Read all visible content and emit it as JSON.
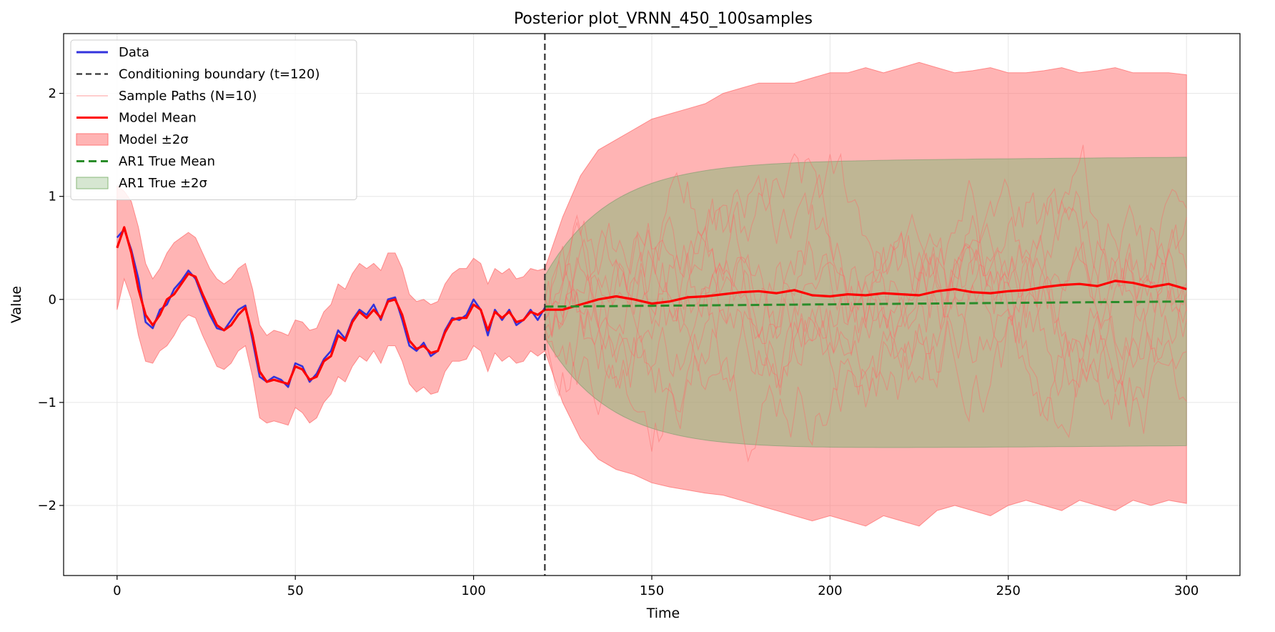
{
  "chart_data": {
    "type": "line",
    "title": "Posterior plot_VRNN_450_100samples",
    "xlabel": "Time",
    "ylabel": "Value",
    "xlim": [
      -15,
      315
    ],
    "ylim": [
      -2.68,
      2.58
    ],
    "x_ticks": [
      0,
      50,
      100,
      150,
      200,
      250,
      300
    ],
    "x_tick_labels": [
      "0",
      "50",
      "100",
      "150",
      "200",
      "250",
      "300"
    ],
    "y_ticks": [
      -2,
      -1,
      0,
      1,
      2
    ],
    "y_tick_labels": [
      "−2",
      "−1",
      "0",
      "1",
      "2"
    ],
    "grid": true,
    "legend_position": "top-left",
    "conditioning_boundary": 120,
    "colors": {
      "data": "#3333dd",
      "boundary": "#333333",
      "sample": "#ff6666",
      "model_mean": "#ff0000",
      "model_band": "#ff7777",
      "ar1_mean": "#2a8c2a",
      "ar1_band": "#8ab87a"
    },
    "legend": [
      {
        "key": "data",
        "label": "Data",
        "style": "line"
      },
      {
        "key": "boundary",
        "label": "Conditioning boundary (t=120)",
        "style": "dash"
      },
      {
        "key": "sample",
        "label": "Sample Paths (N=10)",
        "style": "thin"
      },
      {
        "key": "model_mean",
        "label": "Model Mean",
        "style": "line"
      },
      {
        "key": "model_band",
        "label": "Model ±2σ",
        "style": "patch"
      },
      {
        "key": "ar1_mean",
        "label": "AR1 True Mean",
        "style": "dash"
      },
      {
        "key": "ar1_band",
        "label": "AR1 True ±2σ",
        "style": "patch"
      }
    ],
    "data": {
      "x": [
        0,
        2,
        4,
        6,
        8,
        10,
        12,
        14,
        16,
        18,
        20,
        22,
        24,
        26,
        28,
        30,
        32,
        34,
        36,
        38,
        40,
        42,
        44,
        46,
        48,
        50,
        52,
        54,
        56,
        58,
        60,
        62,
        64,
        66,
        68,
        70,
        72,
        74,
        76,
        78,
        80,
        82,
        84,
        86,
        88,
        90,
        92,
        94,
        96,
        98,
        100,
        102,
        104,
        106,
        108,
        110,
        112,
        114,
        116,
        118,
        120
      ],
      "y": [
        0.6,
        0.68,
        0.48,
        0.2,
        -0.22,
        -0.28,
        -0.1,
        -0.05,
        0.1,
        0.18,
        0.28,
        0.2,
        0.02,
        -0.15,
        -0.28,
        -0.3,
        -0.2,
        -0.1,
        -0.06,
        -0.4,
        -0.75,
        -0.8,
        -0.75,
        -0.78,
        -0.85,
        -0.62,
        -0.65,
        -0.8,
        -0.72,
        -0.58,
        -0.5,
        -0.3,
        -0.38,
        -0.2,
        -0.1,
        -0.15,
        -0.05,
        -0.2,
        0.0,
        0.02,
        -0.2,
        -0.45,
        -0.5,
        -0.42,
        -0.55,
        -0.5,
        -0.3,
        -0.18,
        -0.2,
        -0.15,
        0.0,
        -0.1,
        -0.35,
        -0.1,
        -0.2,
        -0.1,
        -0.25,
        -0.2,
        -0.1,
        -0.2,
        -0.08
      ]
    },
    "model_mean": {
      "x": [
        0,
        2,
        4,
        6,
        8,
        10,
        12,
        14,
        16,
        18,
        20,
        22,
        24,
        26,
        28,
        30,
        32,
        34,
        36,
        38,
        40,
        42,
        44,
        46,
        48,
        50,
        52,
        54,
        56,
        58,
        60,
        62,
        64,
        66,
        68,
        70,
        72,
        74,
        76,
        78,
        80,
        82,
        84,
        86,
        88,
        90,
        92,
        94,
        96,
        98,
        100,
        102,
        104,
        106,
        108,
        110,
        112,
        114,
        116,
        118,
        120,
        125,
        130,
        135,
        140,
        145,
        150,
        155,
        160,
        165,
        170,
        175,
        180,
        185,
        190,
        195,
        200,
        205,
        210,
        215,
        220,
        225,
        230,
        235,
        240,
        245,
        250,
        255,
        260,
        265,
        270,
        275,
        280,
        285,
        290,
        295,
        300
      ],
      "y": [
        0.5,
        0.7,
        0.45,
        0.1,
        -0.15,
        -0.25,
        -0.15,
        0.0,
        0.05,
        0.15,
        0.25,
        0.22,
        0.05,
        -0.1,
        -0.25,
        -0.3,
        -0.25,
        -0.15,
        -0.08,
        -0.35,
        -0.7,
        -0.8,
        -0.78,
        -0.8,
        -0.82,
        -0.65,
        -0.68,
        -0.78,
        -0.75,
        -0.6,
        -0.55,
        -0.35,
        -0.4,
        -0.22,
        -0.12,
        -0.18,
        -0.1,
        -0.18,
        -0.02,
        0.0,
        -0.15,
        -0.4,
        -0.48,
        -0.45,
        -0.52,
        -0.5,
        -0.32,
        -0.2,
        -0.18,
        -0.18,
        -0.05,
        -0.1,
        -0.3,
        -0.12,
        -0.18,
        -0.12,
        -0.22,
        -0.2,
        -0.12,
        -0.15,
        -0.1,
        -0.1,
        -0.05,
        0.0,
        0.03,
        0.0,
        -0.04,
        -0.02,
        0.02,
        0.03,
        0.05,
        0.07,
        0.08,
        0.06,
        0.09,
        0.04,
        0.03,
        0.05,
        0.04,
        0.06,
        0.05,
        0.04,
        0.08,
        0.1,
        0.07,
        0.06,
        0.08,
        0.09,
        0.12,
        0.14,
        0.15,
        0.13,
        0.18,
        0.16,
        0.12,
        0.15,
        0.1
      ]
    },
    "model_band": {
      "x": [
        0,
        2,
        4,
        6,
        8,
        10,
        12,
        14,
        16,
        18,
        20,
        22,
        24,
        26,
        28,
        30,
        32,
        34,
        36,
        38,
        40,
        42,
        44,
        46,
        48,
        50,
        52,
        54,
        56,
        58,
        60,
        62,
        64,
        66,
        68,
        70,
        72,
        74,
        76,
        78,
        80,
        82,
        84,
        86,
        88,
        90,
        92,
        94,
        96,
        98,
        100,
        102,
        104,
        106,
        108,
        110,
        112,
        114,
        116,
        118,
        120,
        125,
        130,
        135,
        140,
        145,
        150,
        155,
        160,
        165,
        170,
        175,
        180,
        185,
        190,
        195,
        200,
        205,
        210,
        215,
        220,
        225,
        230,
        235,
        240,
        245,
        250,
        255,
        260,
        265,
        270,
        275,
        280,
        285,
        290,
        295,
        300
      ],
      "upper": [
        1.1,
        1.05,
        0.95,
        0.7,
        0.35,
        0.2,
        0.3,
        0.45,
        0.55,
        0.6,
        0.65,
        0.6,
        0.45,
        0.3,
        0.2,
        0.15,
        0.2,
        0.3,
        0.35,
        0.1,
        -0.25,
        -0.35,
        -0.3,
        -0.32,
        -0.35,
        -0.2,
        -0.22,
        -0.3,
        -0.28,
        -0.12,
        -0.05,
        0.15,
        0.1,
        0.25,
        0.35,
        0.3,
        0.35,
        0.28,
        0.45,
        0.45,
        0.3,
        0.05,
        -0.02,
        0.0,
        -0.05,
        -0.02,
        0.15,
        0.25,
        0.3,
        0.3,
        0.4,
        0.35,
        0.15,
        0.3,
        0.25,
        0.3,
        0.2,
        0.22,
        0.3,
        0.28,
        0.3,
        0.8,
        1.2,
        1.45,
        1.55,
        1.65,
        1.75,
        1.8,
        1.85,
        1.9,
        2.0,
        2.05,
        2.1,
        2.1,
        2.1,
        2.15,
        2.2,
        2.2,
        2.25,
        2.2,
        2.25,
        2.3,
        2.25,
        2.2,
        2.22,
        2.25,
        2.2,
        2.2,
        2.22,
        2.25,
        2.2,
        2.22,
        2.25,
        2.2,
        2.2,
        2.2,
        2.18
      ],
      "lower": [
        -0.1,
        0.2,
        0.0,
        -0.35,
        -0.6,
        -0.62,
        -0.5,
        -0.45,
        -0.35,
        -0.22,
        -0.15,
        -0.18,
        -0.35,
        -0.5,
        -0.65,
        -0.68,
        -0.62,
        -0.5,
        -0.45,
        -0.75,
        -1.15,
        -1.2,
        -1.18,
        -1.2,
        -1.22,
        -1.05,
        -1.1,
        -1.2,
        -1.15,
        -1.0,
        -0.92,
        -0.75,
        -0.8,
        -0.65,
        -0.55,
        -0.6,
        -0.5,
        -0.62,
        -0.45,
        -0.45,
        -0.6,
        -0.82,
        -0.9,
        -0.85,
        -0.92,
        -0.9,
        -0.7,
        -0.6,
        -0.6,
        -0.58,
        -0.45,
        -0.5,
        -0.7,
        -0.52,
        -0.6,
        -0.55,
        -0.62,
        -0.6,
        -0.5,
        -0.55,
        -0.5,
        -1.0,
        -1.35,
        -1.55,
        -1.65,
        -1.7,
        -1.78,
        -1.82,
        -1.85,
        -1.88,
        -1.9,
        -1.95,
        -2.0,
        -2.05,
        -2.1,
        -2.15,
        -2.1,
        -2.15,
        -2.2,
        -2.1,
        -2.15,
        -2.2,
        -2.05,
        -2.0,
        -2.05,
        -2.1,
        -2.0,
        -1.95,
        -2.0,
        -2.05,
        -1.95,
        -2.0,
        -2.05,
        -1.95,
        -2.0,
        -1.95,
        -1.98
      ]
    },
    "ar1": {
      "start": 120,
      "end": 300,
      "mean_start": -0.07,
      "mean_end": -0.02,
      "sigma2_limit": 1.4,
      "sigma2_at_start": 0.3,
      "rate": 0.055
    },
    "sample_paths": {
      "count": 10,
      "start": 120,
      "end": 300
    }
  }
}
